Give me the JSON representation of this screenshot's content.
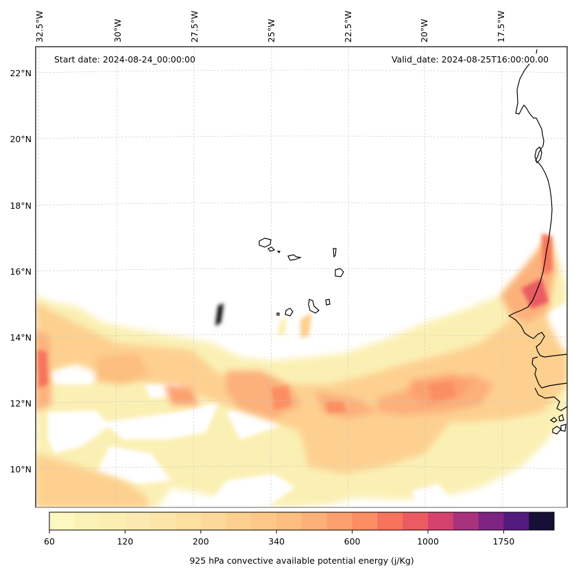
{
  "map": {
    "annotations": {
      "start_date": "Start date: 2024-08-24_00:00:00",
      "valid_date": "Valid_date: 2024-08-25T16:00:00.00"
    },
    "lon_ticks": [
      "32.5°W",
      "30°W",
      "27.5°W",
      "25°W",
      "22.5°W",
      "20°W",
      "17.5°W"
    ],
    "lat_ticks": [
      "22°N",
      "20°N",
      "18°N",
      "16°N",
      "14°N",
      "12°N",
      "10°N"
    ],
    "lon_values": [
      -32.5,
      -30,
      -27.5,
      -25,
      -22.5,
      -20,
      -17.5
    ],
    "lat_values": [
      22,
      20,
      18,
      16,
      14,
      12,
      10
    ],
    "extent": {
      "lon_min": -33.4,
      "lon_max": -15.6,
      "lat_min": 8.9,
      "lat_max": 22.8
    },
    "field_name": "925 hPa convective available potential energy",
    "field_units": "j/Kg",
    "regions": [
      {
        "name": "western-edge-maximum",
        "lon": -32.3,
        "lat": 13.0,
        "level_approx": 600
      },
      {
        "name": "central-band-maximum",
        "lon": -24.3,
        "lat": 12.0,
        "level_approx": 500
      },
      {
        "name": "eastern-band-maximum",
        "lon": -19.8,
        "lat": 12.3,
        "level_approx": 500
      },
      {
        "name": "senegal-coast-maximum",
        "lon": -16.2,
        "lat": 15.3,
        "level_approx": 900
      }
    ]
  },
  "colorbar": {
    "label": "925 hPa convective available potential energy (j/Kg)",
    "tick_labels": [
      "60",
      "120",
      "200",
      "340",
      "600",
      "1000",
      "1750"
    ],
    "colors": [
      "#fcf8c0",
      "#fbf3b6",
      "#fbefb0",
      "#fbeab0",
      "#fbe6a8",
      "#fbe0a0",
      "#fcd99a",
      "#fdd090",
      "#fdc888",
      "#fdbe7e",
      "#fcb07a",
      "#fca06e",
      "#fb8e62",
      "#f6735c",
      "#ea5c62",
      "#d3436e",
      "#a8327c",
      "#7e2482",
      "#521a7c",
      "#161037"
    ]
  }
}
